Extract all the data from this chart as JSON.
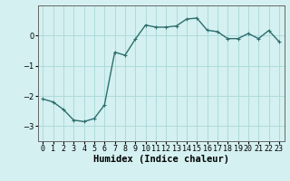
{
  "x": [
    0,
    1,
    2,
    3,
    4,
    5,
    6,
    7,
    8,
    9,
    10,
    11,
    12,
    13,
    14,
    15,
    16,
    17,
    18,
    19,
    20,
    21,
    22,
    23
  ],
  "y": [
    -2.1,
    -2.2,
    -2.45,
    -2.8,
    -2.85,
    -2.75,
    -2.3,
    -0.55,
    -0.65,
    -0.12,
    0.35,
    0.28,
    0.28,
    0.32,
    0.55,
    0.58,
    0.18,
    0.13,
    -0.1,
    -0.1,
    0.07,
    -0.1,
    0.17,
    -0.2
  ],
  "line_color": "#2d6e6e",
  "marker": "+",
  "marker_size": 3,
  "bg_color": "#d4f0f0",
  "grid_color": "#a8d8d8",
  "xlabel": "Humidex (Indice chaleur)",
  "xlim": [
    -0.5,
    23.5
  ],
  "ylim": [
    -3.5,
    1.0
  ],
  "yticks": [
    -3,
    -2,
    -1,
    0
  ],
  "xtick_labels": [
    "0",
    "1",
    "2",
    "3",
    "4",
    "5",
    "6",
    "7",
    "8",
    "9",
    "10",
    "11",
    "12",
    "13",
    "14",
    "15",
    "16",
    "17",
    "18",
    "19",
    "20",
    "21",
    "22",
    "23"
  ],
  "xlabel_fontsize": 7.5,
  "tick_fontsize": 6.0,
  "line_width": 1.0
}
